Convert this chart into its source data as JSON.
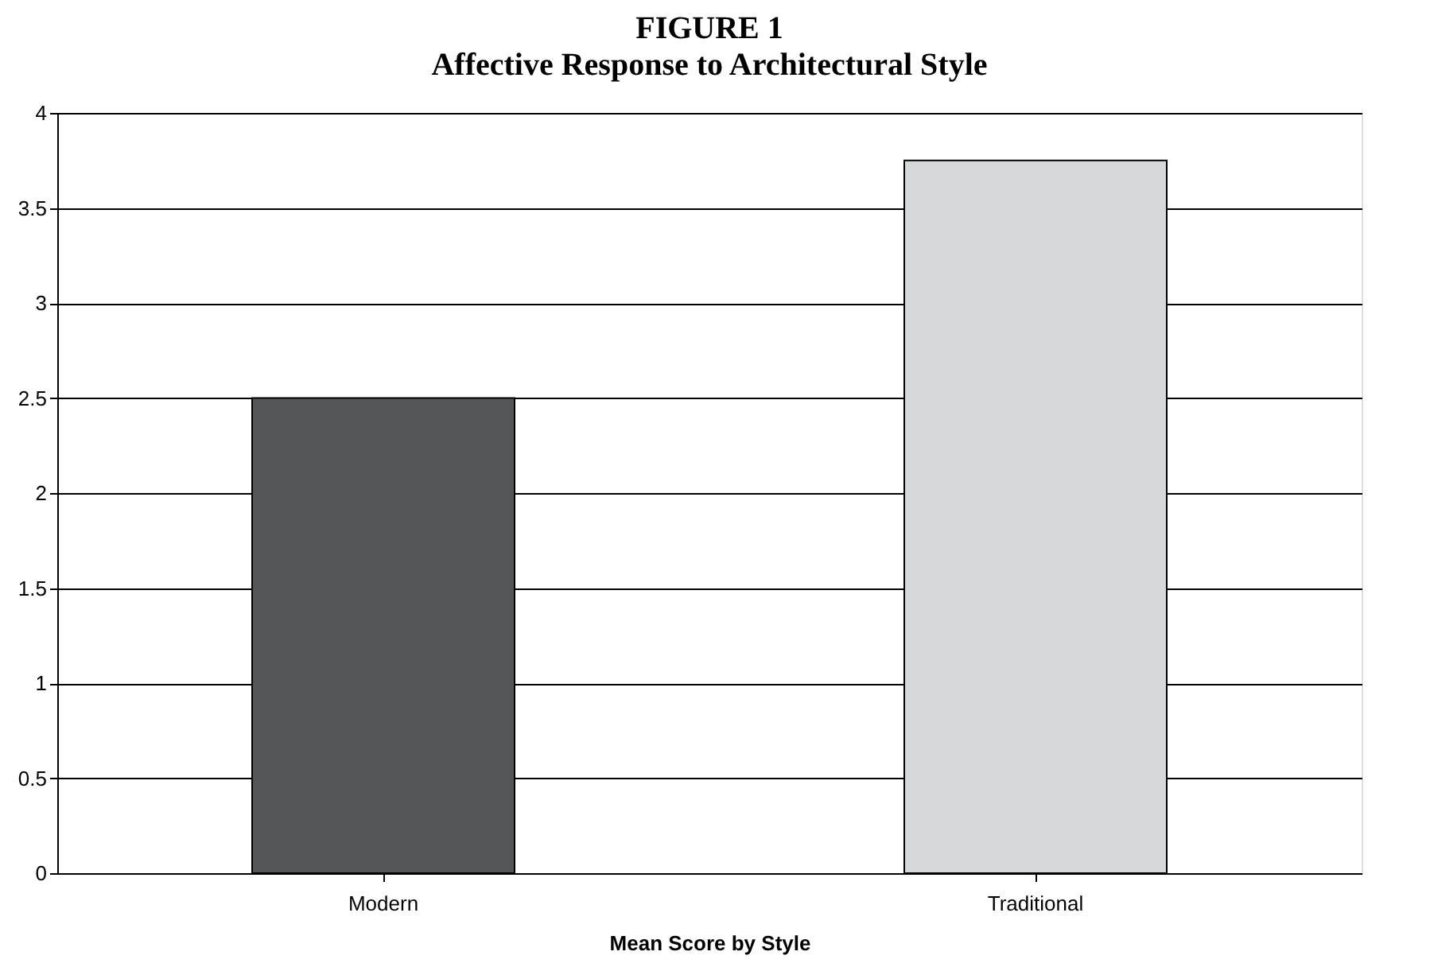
{
  "chart_data": {
    "type": "bar",
    "title": "FIGURE 1",
    "subtitle": "Affective Response to Architectural Style",
    "xlabel": "Mean Score by Style",
    "categories": [
      "Modern",
      "Traditional"
    ],
    "values": [
      2.5,
      3.75
    ],
    "colors": [
      "#545557",
      "#d7d8da"
    ],
    "ylim": [
      0,
      4
    ],
    "yticks": [
      0,
      0.5,
      1,
      1.5,
      2,
      2.5,
      3,
      3.5,
      4
    ],
    "grid": "y",
    "legend": false
  }
}
